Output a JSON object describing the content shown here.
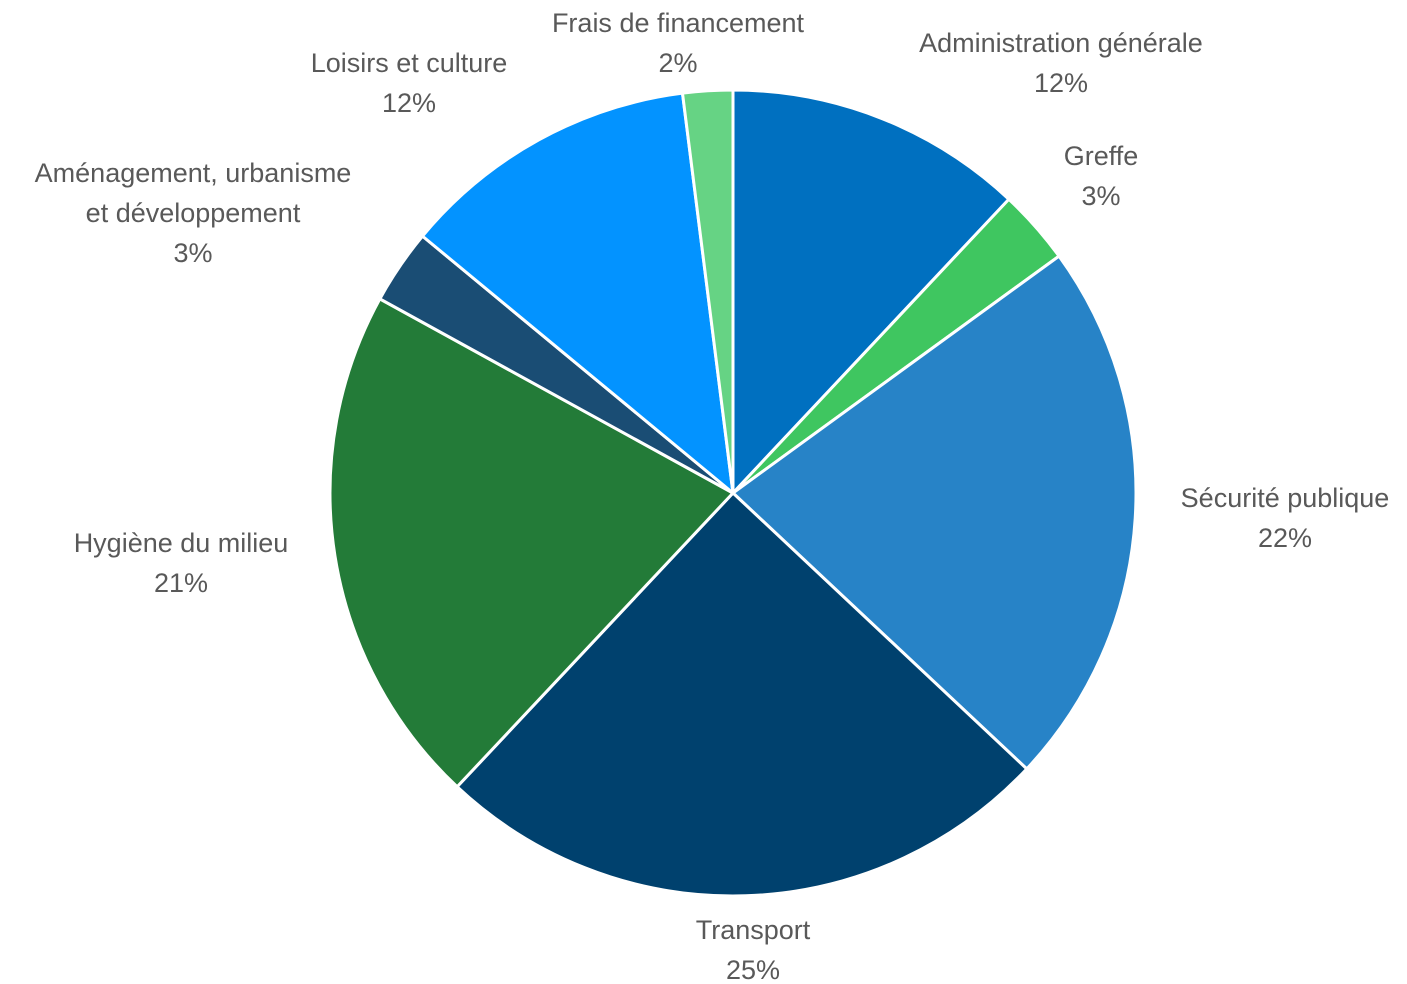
{
  "chart_data": {
    "type": "pie",
    "start": "top",
    "direction": "clockwise",
    "slices": [
      {
        "label": "Administration générale",
        "value": 12,
        "value_label": "12%",
        "color": "#0070C0"
      },
      {
        "label": "Greffe",
        "value": 3,
        "value_label": "3%",
        "color": "#3FC660"
      },
      {
        "label": "Sécurité publique",
        "value": 22,
        "value_label": "22%",
        "color": "#2783C7"
      },
      {
        "label": "Transport",
        "value": 25,
        "value_label": "25%",
        "color": "#00416E"
      },
      {
        "label": "Hygiène du milieu",
        "value": 21,
        "value_label": "21%",
        "color": "#237B38"
      },
      {
        "label": "Aménagement, urbanisme et développement",
        "label_lines": [
          "Aménagement, urbanisme",
          "et développement"
        ],
        "value": 3,
        "value_label": "3%",
        "color": "#1A4D74"
      },
      {
        "label": "Loisirs et culture",
        "value": 12,
        "value_label": "12%",
        "color": "#0393FF"
      },
      {
        "label": "Frais de financement",
        "value": 2,
        "value_label": "2%",
        "color": "#66D384"
      }
    ]
  }
}
